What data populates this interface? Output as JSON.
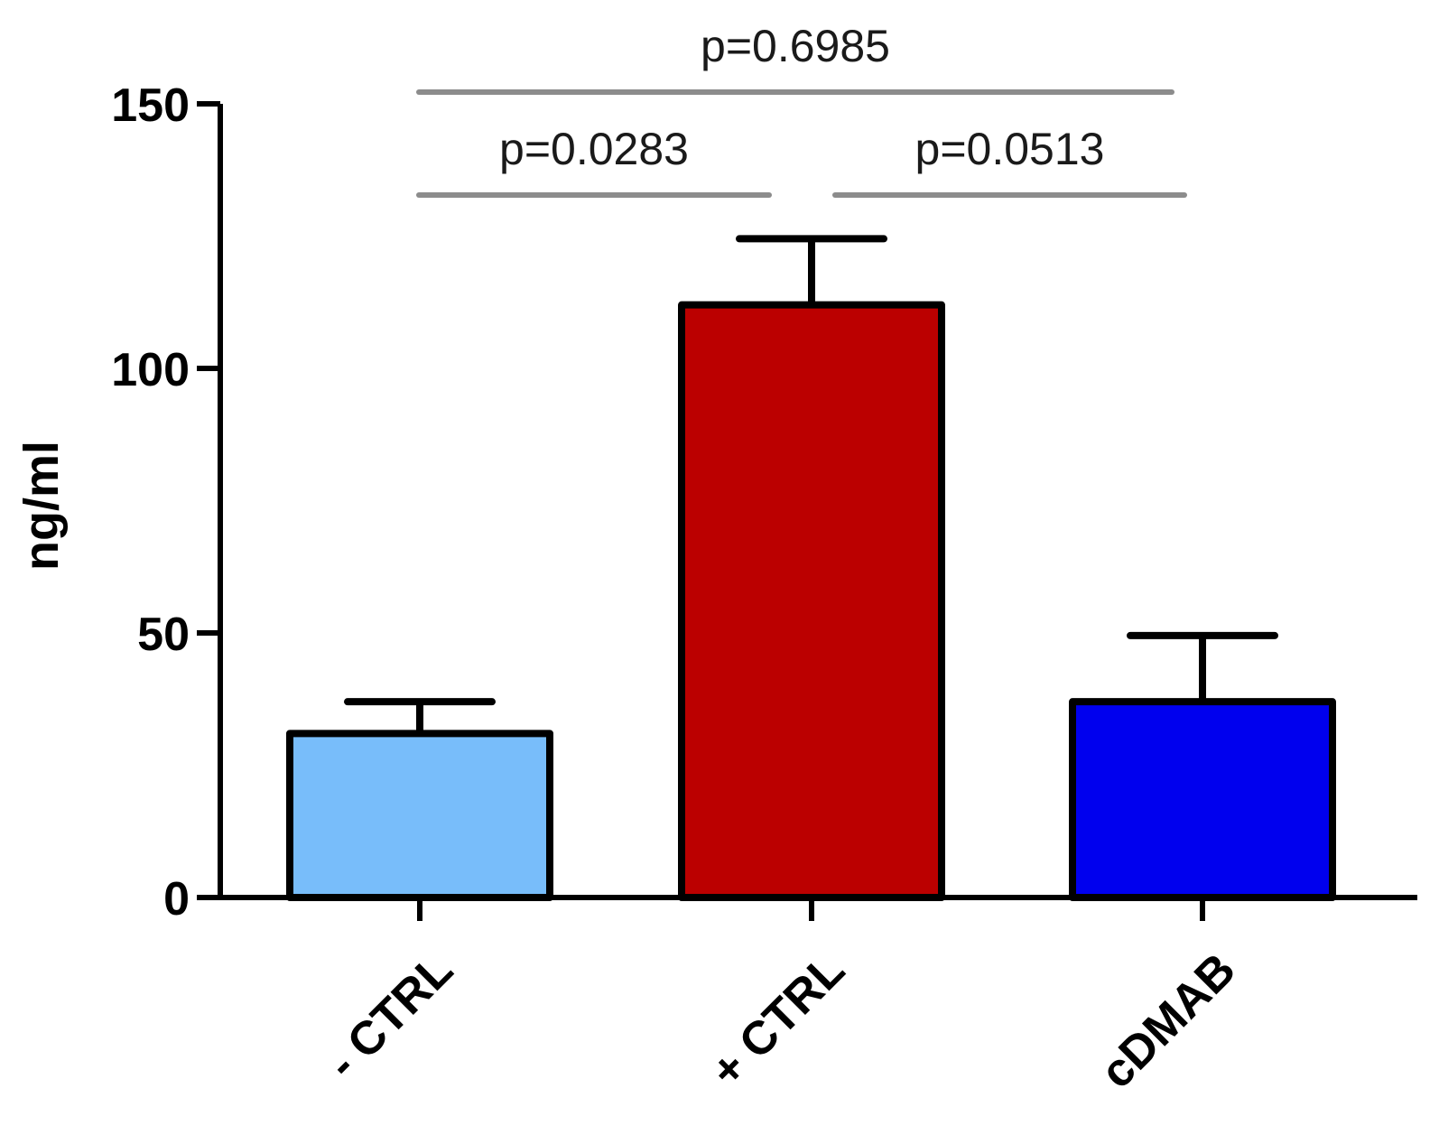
{
  "chart_data": {
    "type": "bar",
    "categories": [
      "- CTRL",
      "+ CTRL",
      "cDMAB"
    ],
    "values": [
      31,
      112,
      37
    ],
    "error_upper": [
      37,
      124.5,
      49.5
    ],
    "colors": [
      "#78bdfa",
      "#bb0000",
      "#0000ee"
    ],
    "title": "",
    "xlabel": "",
    "ylabel": "ng/ml",
    "ylim": [
      0,
      150
    ],
    "yticks": [
      {
        "value": 0,
        "label": "0"
      },
      {
        "value": 50,
        "label": "50"
      },
      {
        "value": 100,
        "label": "100"
      },
      {
        "value": 150,
        "label": "150"
      }
    ],
    "grid": false,
    "significance": [
      {
        "from": 0,
        "to": 1,
        "label": "p=0.0283"
      },
      {
        "from": 1,
        "to": 2,
        "label": "p=0.0513"
      },
      {
        "from": 0,
        "to": 2,
        "label": "p=0.6985"
      }
    ]
  }
}
